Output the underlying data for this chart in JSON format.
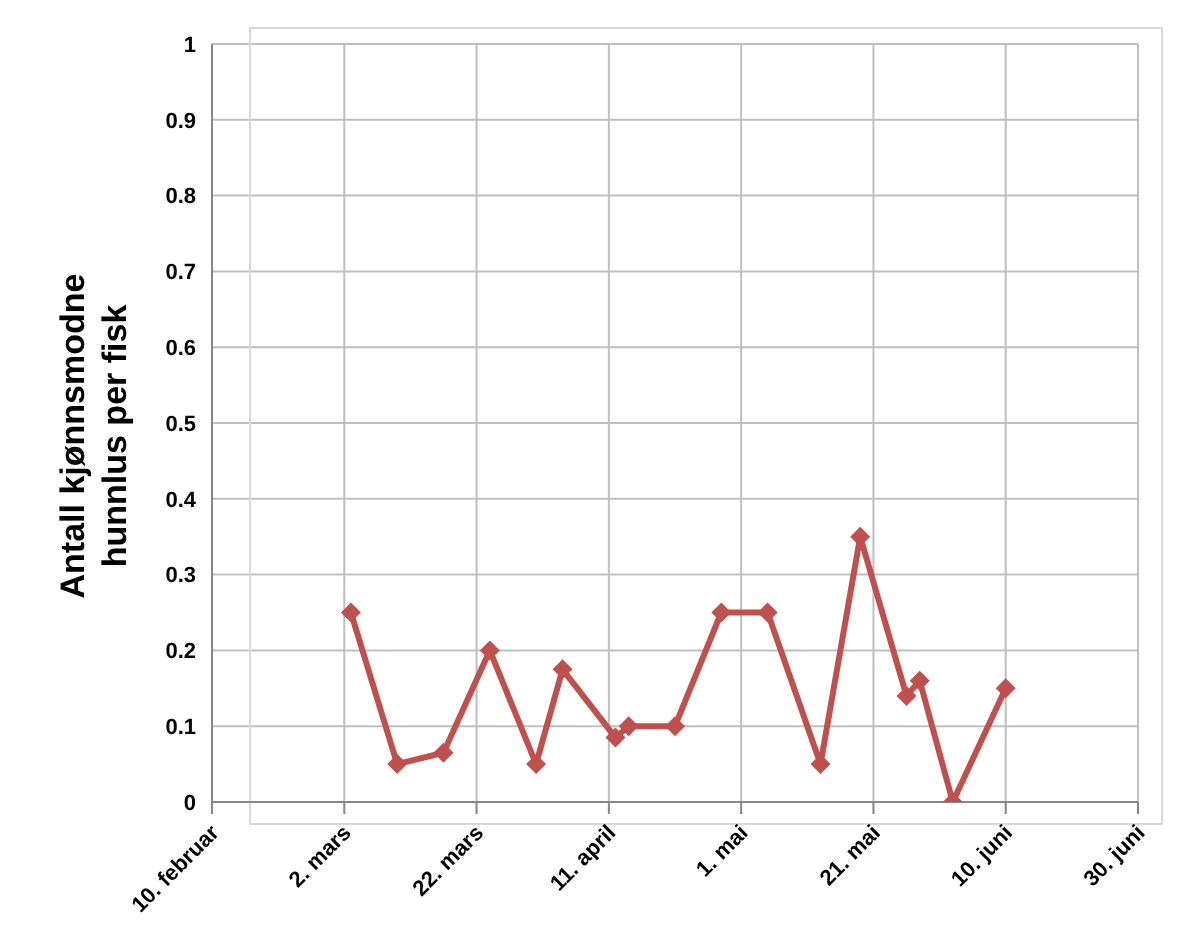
{
  "chart_data": {
    "type": "line",
    "ylabel": "Antall kjønnsmodne hunnlus per fisk",
    "x": [
      "--03-03",
      "--03-10",
      "--03-17",
      "--03-24",
      "--03-31",
      "--04-04",
      "--04-12",
      "--04-14",
      "--04-21",
      "--04-28",
      "--05-05",
      "--05-13",
      "--05-19",
      "--05-26",
      "--05-28",
      "--06-02",
      "--06-10"
    ],
    "series": [
      {
        "color": "#c0504d",
        "values": [
          0.25,
          0.05,
          0.065,
          0.2,
          0.05,
          0.175,
          0.085,
          0.1,
          0.1,
          0.25,
          0.25,
          0.05,
          0.35,
          0.14,
          0.16,
          0,
          0.15
        ]
      }
    ],
    "xlim": [
      "--02-10",
      "--06-30"
    ],
    "xticks": [
      {
        "value": "--02-10",
        "label": "10. februar"
      },
      {
        "value": "--03-02",
        "label": "2. mars"
      },
      {
        "value": "--03-22",
        "label": "22. mars"
      },
      {
        "value": "--04-11",
        "label": "11. april"
      },
      {
        "value": "--05-01",
        "label": "1. mai"
      },
      {
        "value": "--05-21",
        "label": "21. mai"
      },
      {
        "value": "--06-10",
        "label": "10. juni"
      },
      {
        "value": "--06-30",
        "label": "30. juni"
      }
    ],
    "ylim": [
      0,
      1
    ],
    "yticks": [
      0,
      0.1,
      0.2,
      0.3,
      0.4,
      0.5,
      0.6,
      0.7,
      0.8,
      0.9,
      1
    ],
    "grid": true,
    "marker": "diamond",
    "line_style": "solid"
  }
}
